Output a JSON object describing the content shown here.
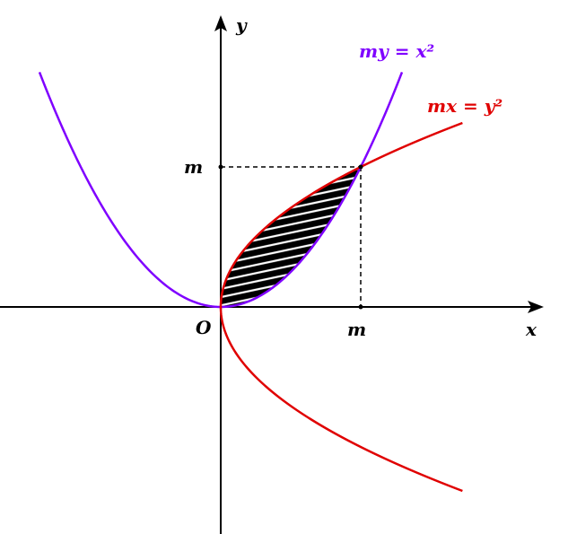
{
  "labels": {
    "y_axis": "y",
    "x_axis": "x",
    "origin": "O",
    "m_on_y": "m",
    "m_on_x": "m"
  },
  "curves": [
    {
      "equation": "my = x²"
    },
    {
      "equation": "mx = y²"
    }
  ]
}
